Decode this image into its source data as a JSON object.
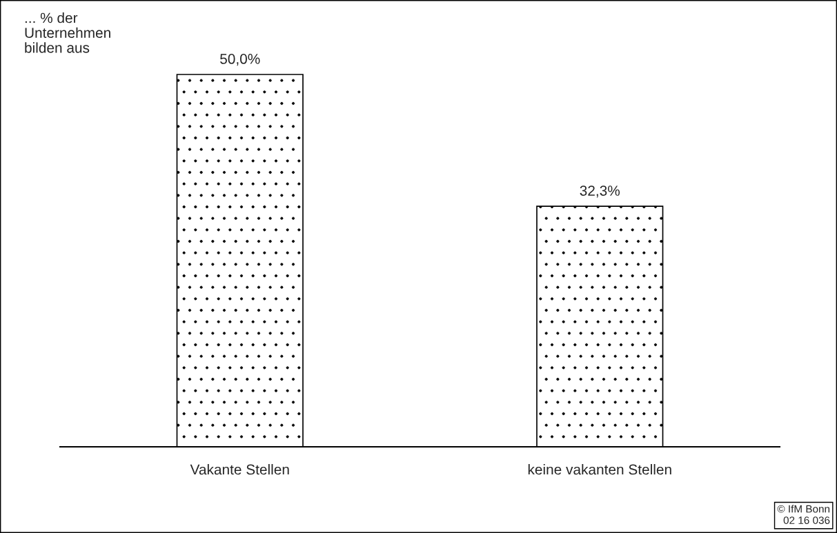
{
  "chart_data": {
    "type": "bar",
    "ylabel": "... % der\nUnternehmen\nbilden aus",
    "categories": [
      "Vakante Stellen",
      "keine vakanten Stellen"
    ],
    "values": [
      50.0,
      32.3
    ],
    "color": "#000000",
    "value_labels": [
      "50,0%",
      "32,3%"
    ],
    "grid": false,
    "legend": false,
    "tick_labels": "x",
    "annotations": [
      "© IfM Bonn\n02 16 036"
    ]
  }
}
